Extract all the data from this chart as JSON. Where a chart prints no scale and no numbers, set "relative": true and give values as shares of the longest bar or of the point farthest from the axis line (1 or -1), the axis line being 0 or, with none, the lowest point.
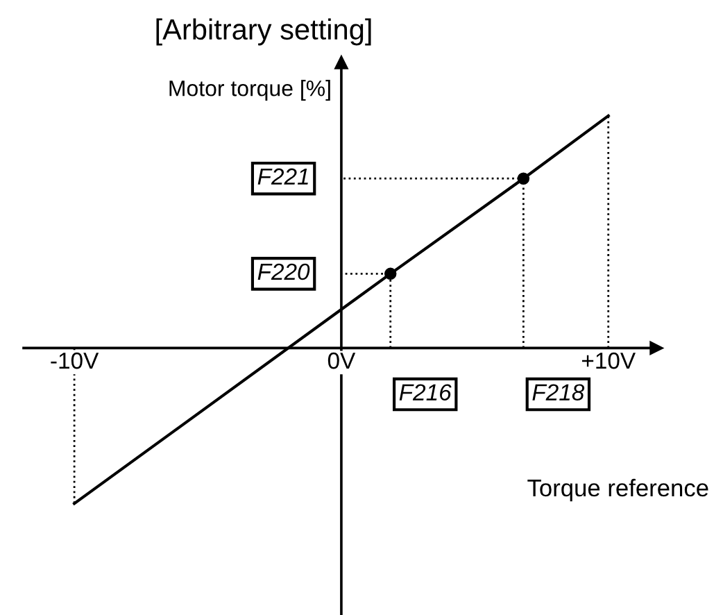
{
  "chart_data": {
    "type": "line",
    "title": "[Arbitrary setting]",
    "xlabel": "Torque reference",
    "ylabel": "Motor torque [%]",
    "relative": true,
    "xlim": [
      -11.9,
      11.8
    ],
    "xticks": [
      {
        "value": -10,
        "label": "-10V"
      },
      {
        "value": 0,
        "label": "0V"
      },
      {
        "value": 10,
        "label": "+10V"
      }
    ],
    "series": [
      {
        "type": "line",
        "color": "#000000",
        "line_style": "solid",
        "x": [
          -10,
          1.84,
          6.82,
          10
        ],
        "values": [
          -0.67,
          0.32,
          0.73,
          1
        ]
      },
      {
        "type": "scatter",
        "color": "#000000",
        "marker": "circle",
        "x": [
          1.84,
          6.82
        ],
        "values": [
          0.32,
          0.73
        ]
      },
      {
        "type": "line",
        "color": "#000000",
        "line_style": "dotted",
        "x": [
          -10,
          -10
        ],
        "values": [
          0,
          -0.67
        ]
      },
      {
        "type": "line",
        "color": "#000000",
        "line_style": "dotted",
        "x": [
          10,
          10
        ],
        "values": [
          0,
          1
        ]
      },
      {
        "type": "line",
        "color": "#000000",
        "line_style": "dotted",
        "x": [
          1.84,
          1.84,
          0
        ],
        "values": [
          0,
          0.32,
          0.32
        ]
      },
      {
        "type": "line",
        "color": "#000000",
        "line_style": "dotted",
        "x": [
          6.82,
          6.82,
          0
        ],
        "values": [
          0,
          0.73,
          0.73
        ]
      }
    ],
    "annotations": [
      {
        "text": "F221",
        "x": 0,
        "y": 0.73
      },
      {
        "text": "F220",
        "x": 0,
        "y": 0.32
      },
      {
        "text": "F216",
        "x": 1.84,
        "y": 0
      },
      {
        "text": "F218",
        "x": 6.82,
        "y": 0
      }
    ],
    "legend": false
  }
}
